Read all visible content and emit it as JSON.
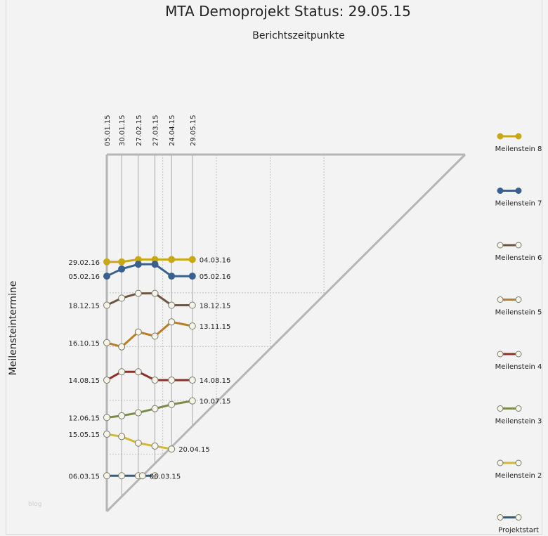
{
  "chart_data": {
    "type": "line",
    "title": "MTA Demoprojekt Status: 29.05.15",
    "xlabel": "Berichtszeitpunkte",
    "ylabel": "Meilensteintermine",
    "report_dates": [
      "05.01.15",
      "30.01.15",
      "27.02.15",
      "27.03.15",
      "24.04.15",
      "29.05.15"
    ],
    "y_range": [
      "05.01.15",
      "30.08.16"
    ],
    "grid": "dotted",
    "legend_position": "right",
    "series": [
      {
        "name": "Meilenstein 8",
        "color": "#c8a818",
        "filled": true,
        "values": [
          "29.02.16",
          "29.02.16",
          "04.03.16",
          "04.03.16",
          "04.03.16",
          "04.03.16"
        ],
        "start_label": "29.02.16",
        "end_label": "04.03.16"
      },
      {
        "name": "Meilenstein 7",
        "color": "#3a6090",
        "filled": true,
        "values": [
          "05.02.16",
          "17.02.16",
          "25.02.16",
          "25.02.16",
          "05.02.16",
          "05.02.16"
        ],
        "start_label": "05.02.16",
        "end_label": "05.02.16"
      },
      {
        "name": "Meilenstein 6",
        "color": "#6e5640",
        "filled": false,
        "values": [
          "18.12.15",
          "30.12.15",
          "07.01.16",
          "07.01.16",
          "18.12.15",
          "18.12.15"
        ],
        "start_label": "18.12.15",
        "end_label": "18.12.15"
      },
      {
        "name": "Meilenstein 5",
        "color": "#b87e28",
        "filled": false,
        "values": [
          "16.10.15",
          "09.10.15",
          "03.11.15",
          "27.10.15",
          "20.11.15",
          "13.11.15"
        ],
        "start_label": "16.10.15",
        "end_label": "13.11.15"
      },
      {
        "name": "Meilenstein 4",
        "color": "#8c3028",
        "filled": false,
        "values": [
          "14.08.15",
          "28.08.15",
          "28.08.15",
          "14.08.15",
          "14.08.15",
          "14.08.15"
        ],
        "start_label": "14.08.15",
        "end_label": "14.08.15"
      },
      {
        "name": "Meilenstein 3",
        "color": "#7a8a48",
        "filled": false,
        "values": [
          "12.06.15",
          "15.06.15",
          "20.06.15",
          "27.06.15",
          "04.07.15",
          "10.07.15"
        ],
        "start_label": "12.06.15",
        "end_label": "10.07.15"
      },
      {
        "name": "Meilenstein 2",
        "color": "#d0b838",
        "filled": false,
        "values": [
          "15.05.15",
          "11.05.15",
          "30.04.15",
          "25.04.15",
          "20.04.15",
          null
        ],
        "start_label": "15.05.15",
        "end_label": "20.04.15"
      },
      {
        "name": "Projektstart",
        "color": "#3a5a78",
        "filled": false,
        "values": [
          "06.03.15",
          "06.03.15",
          "06.03.15",
          "06.03.15",
          null,
          null
        ],
        "start_label": "06.03.15",
        "end_label": "06.03.15"
      }
    ]
  },
  "watermark": "blog"
}
